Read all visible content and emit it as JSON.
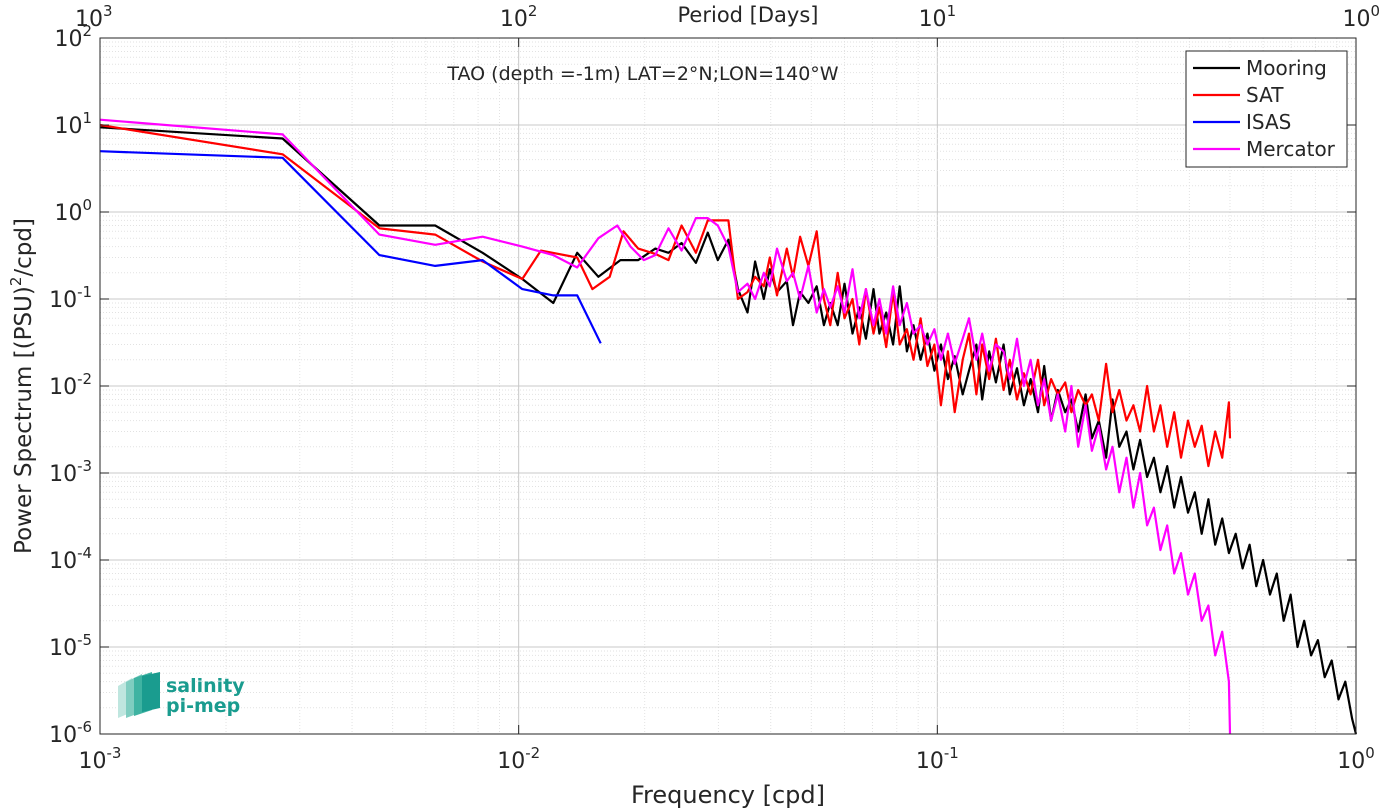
{
  "chart_data": {
    "type": "line",
    "title": "TAO (depth =-1m) LAT=2°N;LON=140°W",
    "xlabel": "Frequency [cpd]",
    "ylabel": "Power Spectrum [(PSU)",
    "ylabel_sup": "2",
    "ylabel_end": "/cpd]",
    "top_xlabel": "Period [Days]",
    "xscale": "log",
    "yscale": "log",
    "xlim": [
      0.001,
      1
    ],
    "ylim": [
      1e-06,
      100
    ],
    "grid": true,
    "legend_position": "top-right",
    "x_ticks": [
      {
        "value": 0.001,
        "base": "10",
        "exp": "-3"
      },
      {
        "value": 0.01,
        "base": "10",
        "exp": "-2"
      },
      {
        "value": 0.1,
        "base": "10",
        "exp": "-1"
      },
      {
        "value": 1,
        "base": "10",
        "exp": "0"
      }
    ],
    "y_ticks": [
      {
        "value": 1e-06,
        "base": "10",
        "exp": "-6"
      },
      {
        "value": 1e-05,
        "base": "10",
        "exp": "-5"
      },
      {
        "value": 0.0001,
        "base": "10",
        "exp": "-4"
      },
      {
        "value": 0.001,
        "base": "10",
        "exp": "-3"
      },
      {
        "value": 0.01,
        "base": "10",
        "exp": "-2"
      },
      {
        "value": 0.1,
        "base": "10",
        "exp": "-1"
      },
      {
        "value": 1,
        "base": "10",
        "exp": "0"
      },
      {
        "value": 10,
        "base": "10",
        "exp": "1"
      },
      {
        "value": 100,
        "base": "10",
        "exp": "2"
      }
    ],
    "top_ticks": [
      {
        "period": 1000,
        "base": "10",
        "exp": "3"
      },
      {
        "period": 100,
        "base": "10",
        "exp": "2"
      },
      {
        "period": 10,
        "base": "10",
        "exp": "1"
      },
      {
        "period": 1,
        "base": "10",
        "exp": "0"
      }
    ],
    "series": [
      {
        "name": "Mooring",
        "color": "#000000",
        "x": [
          0.001,
          0.00273,
          0.00465,
          0.00632,
          0.0082,
          0.0102,
          0.0121,
          0.0138,
          0.0155,
          0.0175,
          0.0193,
          0.0212,
          0.0228,
          0.0245,
          0.0265,
          0.0283,
          0.0299,
          0.0317,
          0.0334,
          0.0352,
          0.0367,
          0.0385,
          0.0398,
          0.0414,
          0.0437,
          0.0452,
          0.047,
          0.0492,
          0.0515,
          0.0536,
          0.0555,
          0.0578,
          0.06,
          0.0627,
          0.0651,
          0.0675,
          0.0704,
          0.0727,
          0.0755,
          0.0784,
          0.0813,
          0.0846,
          0.0877,
          0.0912,
          0.0947,
          0.0984,
          0.102,
          0.106,
          0.11,
          0.115,
          0.119,
          0.124,
          0.128,
          0.133,
          0.138,
          0.144,
          0.149,
          0.155,
          0.161,
          0.167,
          0.174,
          0.18,
          0.187,
          0.194,
          0.202,
          0.209,
          0.217,
          0.226,
          0.234,
          0.243,
          0.253,
          0.262,
          0.272,
          0.283,
          0.294,
          0.305,
          0.317,
          0.329,
          0.341,
          0.354,
          0.368,
          0.382,
          0.397,
          0.412,
          0.428,
          0.444,
          0.461,
          0.479,
          0.497,
          0.516,
          0.536,
          0.557,
          0.578,
          0.6,
          0.623,
          0.647,
          0.672,
          0.698,
          0.725,
          0.752,
          0.781,
          0.811,
          0.842,
          0.875,
          0.908,
          0.943,
          0.979,
          1.0
        ],
        "values": [
          9.4,
          7.0,
          0.7,
          0.7,
          0.34,
          0.17,
          0.09,
          0.34,
          0.18,
          0.28,
          0.28,
          0.38,
          0.34,
          0.44,
          0.26,
          0.58,
          0.28,
          0.48,
          0.13,
          0.07,
          0.27,
          0.1,
          0.22,
          0.12,
          0.16,
          0.05,
          0.12,
          0.09,
          0.14,
          0.05,
          0.09,
          0.05,
          0.15,
          0.04,
          0.08,
          0.035,
          0.13,
          0.04,
          0.07,
          0.03,
          0.14,
          0.025,
          0.05,
          0.02,
          0.04,
          0.015,
          0.03,
          0.012,
          0.022,
          0.008,
          0.015,
          0.03,
          0.007,
          0.025,
          0.011,
          0.03,
          0.008,
          0.016,
          0.006,
          0.012,
          0.005,
          0.017,
          0.004,
          0.009,
          0.005,
          0.007,
          0.003,
          0.008,
          0.0025,
          0.004,
          0.0015,
          0.007,
          0.002,
          0.003,
          0.0011,
          0.0024,
          0.0009,
          0.0015,
          0.0006,
          0.0012,
          0.0004,
          0.0009,
          0.00035,
          0.0006,
          0.0002,
          0.0005,
          0.00015,
          0.0003,
          0.00012,
          0.0002,
          8e-05,
          0.00015,
          5e-05,
          0.0001,
          4e-05,
          7e-05,
          2e-05,
          4e-05,
          1e-05,
          2e-05,
          8e-06,
          1.2e-05,
          4.5e-06,
          7e-06,
          2.5e-06,
          4e-06,
          1.5e-06,
          1e-06
        ]
      },
      {
        "name": "SAT",
        "color": "#ff0000",
        "x": [
          0.001,
          0.00273,
          0.00465,
          0.00632,
          0.0082,
          0.0102,
          0.0113,
          0.0138,
          0.015,
          0.0165,
          0.0178,
          0.0193,
          0.0212,
          0.0228,
          0.0245,
          0.0265,
          0.0283,
          0.0299,
          0.0317,
          0.0334,
          0.0352,
          0.0367,
          0.0385,
          0.0398,
          0.0414,
          0.0437,
          0.0452,
          0.047,
          0.0492,
          0.0515,
          0.0536,
          0.0555,
          0.0578,
          0.06,
          0.0627,
          0.0651,
          0.0675,
          0.0704,
          0.0727,
          0.0755,
          0.0784,
          0.0813,
          0.0846,
          0.0877,
          0.0912,
          0.0947,
          0.0984,
          0.102,
          0.106,
          0.11,
          0.115,
          0.119,
          0.124,
          0.128,
          0.133,
          0.138,
          0.144,
          0.149,
          0.155,
          0.161,
          0.167,
          0.174,
          0.18,
          0.187,
          0.194,
          0.202,
          0.209,
          0.217,
          0.226,
          0.234,
          0.243,
          0.253,
          0.262,
          0.272,
          0.283,
          0.294,
          0.305,
          0.317,
          0.329,
          0.341,
          0.354,
          0.368,
          0.382,
          0.397,
          0.412,
          0.428,
          0.444,
          0.461,
          0.479,
          0.497,
          0.5
        ],
        "values": [
          10,
          4.6,
          0.65,
          0.55,
          0.27,
          0.17,
          0.36,
          0.3,
          0.13,
          0.18,
          0.6,
          0.38,
          0.33,
          0.28,
          0.7,
          0.34,
          0.8,
          0.8,
          0.8,
          0.1,
          0.12,
          0.18,
          0.14,
          0.3,
          0.11,
          0.38,
          0.18,
          0.52,
          0.24,
          0.6,
          0.1,
          0.05,
          0.2,
          0.06,
          0.1,
          0.03,
          0.13,
          0.04,
          0.08,
          0.028,
          0.12,
          0.03,
          0.045,
          0.02,
          0.06,
          0.017,
          0.03,
          0.006,
          0.025,
          0.005,
          0.02,
          0.04,
          0.008,
          0.03,
          0.012,
          0.035,
          0.009,
          0.02,
          0.007,
          0.014,
          0.008,
          0.02,
          0.006,
          0.012,
          0.008,
          0.011,
          0.005,
          0.009,
          0.006,
          0.008,
          0.004,
          0.018,
          0.005,
          0.009,
          0.004,
          0.006,
          0.003,
          0.01,
          0.003,
          0.006,
          0.002,
          0.005,
          0.0015,
          0.004,
          0.002,
          0.0035,
          0.0012,
          0.003,
          0.0015,
          0.0065,
          0.0025
        ]
      },
      {
        "name": "ISAS",
        "color": "#0000ff",
        "x": [
          0.001,
          0.00273,
          0.00465,
          0.00632,
          0.0082,
          0.0102,
          0.0121,
          0.0138,
          0.0157
        ],
        "values": [
          5.0,
          4.2,
          0.32,
          0.24,
          0.28,
          0.13,
          0.11,
          0.11,
          0.031
        ]
      },
      {
        "name": "Mercator",
        "color": "#ff00ff",
        "x": [
          0.001,
          0.00273,
          0.00465,
          0.00632,
          0.0082,
          0.0102,
          0.0121,
          0.0138,
          0.0155,
          0.0172,
          0.0185,
          0.0199,
          0.0212,
          0.0228,
          0.0245,
          0.0265,
          0.0283,
          0.0299,
          0.0317,
          0.0334,
          0.0352,
          0.0367,
          0.0385,
          0.0398,
          0.0414,
          0.0437,
          0.0452,
          0.047,
          0.0492,
          0.0515,
          0.0536,
          0.0555,
          0.0578,
          0.06,
          0.0627,
          0.0651,
          0.0675,
          0.0704,
          0.0727,
          0.0755,
          0.0784,
          0.0813,
          0.0846,
          0.0877,
          0.0912,
          0.0947,
          0.0984,
          0.102,
          0.106,
          0.11,
          0.115,
          0.119,
          0.124,
          0.128,
          0.133,
          0.138,
          0.144,
          0.149,
          0.155,
          0.161,
          0.167,
          0.174,
          0.18,
          0.187,
          0.194,
          0.202,
          0.209,
          0.217,
          0.226,
          0.234,
          0.243,
          0.253,
          0.262,
          0.272,
          0.283,
          0.294,
          0.305,
          0.317,
          0.329,
          0.341,
          0.354,
          0.368,
          0.382,
          0.397,
          0.412,
          0.428,
          0.444,
          0.461,
          0.479,
          0.497,
          0.5
        ],
        "values": [
          11.5,
          7.8,
          0.55,
          0.42,
          0.52,
          0.4,
          0.32,
          0.23,
          0.5,
          0.7,
          0.4,
          0.28,
          0.32,
          0.65,
          0.36,
          0.85,
          0.85,
          0.7,
          0.4,
          0.12,
          0.15,
          0.1,
          0.2,
          0.14,
          0.38,
          0.16,
          0.2,
          0.1,
          0.24,
          0.07,
          0.13,
          0.08,
          0.14,
          0.07,
          0.22,
          0.06,
          0.13,
          0.05,
          0.1,
          0.04,
          0.14,
          0.05,
          0.09,
          0.04,
          0.05,
          0.03,
          0.045,
          0.02,
          0.04,
          0.018,
          0.035,
          0.06,
          0.02,
          0.04,
          0.015,
          0.03,
          0.025,
          0.012,
          0.035,
          0.01,
          0.02,
          0.006,
          0.012,
          0.004,
          0.008,
          0.003,
          0.01,
          0.002,
          0.006,
          0.0018,
          0.0035,
          0.0011,
          0.002,
          0.0006,
          0.0015,
          0.0004,
          0.001,
          0.00025,
          0.0004,
          0.00013,
          0.00025,
          7e-05,
          0.00012,
          4e-05,
          7e-05,
          2e-05,
          3e-05,
          8e-06,
          1.5e-05,
          4e-06,
          1e-06
        ]
      }
    ]
  },
  "watermark": {
    "line1": "salinity",
    "line2": "pi-mep",
    "color": "#1a9c8f"
  }
}
